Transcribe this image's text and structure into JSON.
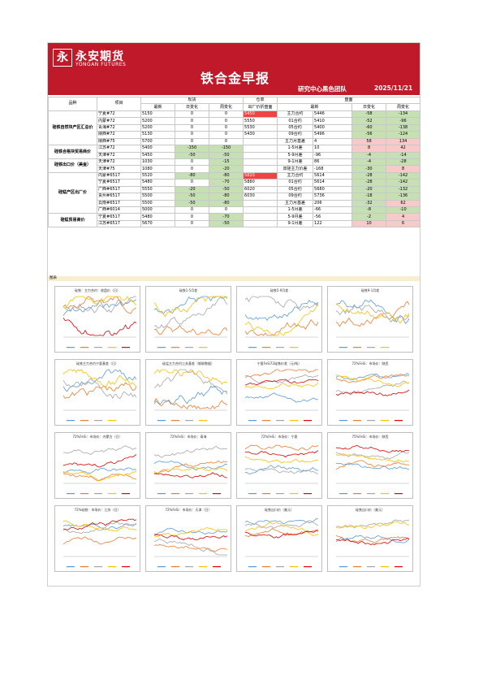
{
  "header": {
    "logo_mark": "永",
    "logo_cn": "永安期货",
    "logo_en": "YONGAN FUTURES",
    "title": "铁合金早报",
    "team": "研究中心黑色团队",
    "date": "2025/11/21"
  },
  "table": {
    "col_pinzhong": "品种",
    "col_xiangmu": "项目",
    "col_xianhuo": "现货",
    "col_cangdan": "仓单",
    "col_panmian": "盘面",
    "col_zuixin": "最新",
    "col_ribianhua": "日变化",
    "col_zhoubianhua": "周变化",
    "col_chuchang": "出厂价折盘面",
    "groups": [
      {
        "label": "硅铁自然块产区汇总价",
        "rows": [
          0,
          1,
          2,
          3,
          4
        ]
      },
      {
        "label": "硅铁合格块贸易商价",
        "rows": [
          5,
          6
        ]
      },
      {
        "label": "硅铁出口价（美金）",
        "rows": [
          7,
          8
        ]
      },
      {
        "label": "硅锰产区出厂价",
        "rows": [
          9,
          10,
          11,
          12,
          13,
          14
        ]
      },
      {
        "label": "硅锰贸易商价",
        "rows": [
          15,
          16
        ]
      }
    ],
    "rows": [
      {
        "item": "宁夏#72",
        "latest": "5150",
        "day": "0",
        "week": "0",
        "cangdan": "5450",
        "pm_label": "主力合约",
        "pm_latest": "5446",
        "pm_day": "-58",
        "pm_week": "-134"
      },
      {
        "item": "内蒙#72",
        "latest": "5200",
        "day": "0",
        "week": "0",
        "cangdan": "5550",
        "pm_label": "01合约",
        "pm_latest": "5410",
        "pm_day": "-52",
        "pm_week": "-96"
      },
      {
        "item": "青海#72",
        "latest": "5200",
        "day": "0",
        "week": "0",
        "cangdan": "5530",
        "pm_label": "05合约",
        "pm_latest": "5400",
        "pm_day": "-60",
        "pm_week": "-138"
      },
      {
        "item": "陕西#72",
        "latest": "5130",
        "day": "0",
        "week": "0",
        "cangdan": "5430",
        "pm_label": "09合约",
        "pm_latest": "5496",
        "pm_day": "-56",
        "pm_week": "-124"
      },
      {
        "item": "陕西#75",
        "latest": "5700",
        "day": "0",
        "week": "0",
        "cangdan": "",
        "pm_label": "主力月基差",
        "pm_latest": "4",
        "pm_day": "58",
        "pm_week": "134"
      },
      {
        "item": "江苏#72",
        "latest": "5400",
        "day": "-150",
        "week": "-150",
        "cangdan": "",
        "pm_label": "1-5月差",
        "pm_latest": "10",
        "pm_day": "8",
        "pm_week": "42"
      },
      {
        "item": "天津#72",
        "latest": "5450",
        "day": "-50",
        "week": "-50",
        "cangdan": "",
        "pm_label": "5-9月差",
        "pm_latest": "-96",
        "pm_day": "-4",
        "pm_week": "-14"
      },
      {
        "item": "天津#72",
        "latest": "1030",
        "day": "0",
        "week": "-15",
        "cangdan": "",
        "pm_label": "9-1月差",
        "pm_latest": "86",
        "pm_day": "-4",
        "pm_week": "-28"
      },
      {
        "item": "天津#75",
        "latest": "1080",
        "day": "0",
        "week": "-20",
        "cangdan": "",
        "pm_label": "双硅主力价差",
        "pm_latest": "-168",
        "pm_day": "-30",
        "pm_week": "8"
      },
      {
        "item": "内蒙#6517",
        "latest": "5520",
        "day": "-80",
        "week": "-80",
        "cangdan": "5820",
        "pm_label": "主力合约",
        "pm_latest": "5614",
        "pm_day": "-28",
        "pm_week": "-142"
      },
      {
        "item": "宁夏#6517",
        "latest": "5480",
        "day": "0",
        "week": "-70",
        "cangdan": "5880",
        "pm_label": "01合约",
        "pm_latest": "5614",
        "pm_day": "-28",
        "pm_week": "-142"
      },
      {
        "item": "广西#6517",
        "latest": "5550",
        "day": "-20",
        "week": "-50",
        "cangdan": "6020",
        "pm_label": "05合约",
        "pm_latest": "5680",
        "pm_day": "-20",
        "pm_week": "-132"
      },
      {
        "item": "贵州#6517",
        "latest": "5500",
        "day": "-50",
        "week": "-80",
        "cangdan": "6030",
        "pm_label": "09合约",
        "pm_latest": "5736",
        "pm_day": "-18",
        "pm_week": "-136"
      },
      {
        "item": "云南#6517",
        "latest": "5500",
        "day": "-50",
        "week": "-80",
        "cangdan": "",
        "pm_label": "主力月基差",
        "pm_latest": "206",
        "pm_day": "-32",
        "pm_week": "62"
      },
      {
        "item": "广西#6014",
        "latest": "5000",
        "day": "0",
        "week": "0",
        "cangdan": "",
        "pm_label": "1-5月差",
        "pm_latest": "-66",
        "pm_day": "-8",
        "pm_week": "-10"
      },
      {
        "item": "宁夏#6517",
        "latest": "5480",
        "day": "0",
        "week": "-70",
        "cangdan": "",
        "pm_label": "5-9月差",
        "pm_latest": "-56",
        "pm_day": "-2",
        "pm_week": "4"
      },
      {
        "item": "江苏#6517",
        "latest": "5670",
        "day": "0",
        "week": "-50",
        "cangdan": "",
        "pm_label": "9-1月差",
        "pm_latest": "122",
        "pm_day": "10",
        "pm_week": "6"
      }
    ]
  },
  "note": "图表",
  "charts": [
    {
      "title": "硅铁：主力合约：收盘价（日）"
    },
    {
      "title": "硅铁1-5月差"
    },
    {
      "title": "硅铁5-9月差"
    },
    {
      "title": "硅铁9-1月差"
    },
    {
      "title": "硅铁主力合约宁夏基差（日）"
    },
    {
      "title": "硅锰主力合约江苏基差（钢联数据）"
    },
    {
      "title": "宁夏FeSi72硅铁价差（元/吨）"
    },
    {
      "title": "72%FeSi：市场价：陕西"
    },
    {
      "title": "72%FeSi：市场价：内蒙古（日）"
    },
    {
      "title": "72%FeSi：市场价：青海"
    },
    {
      "title": "72%FeSi：市场价：宁夏"
    },
    {
      "title": "75%FeSi：市场价：陕西"
    },
    {
      "title": "72%硅铁：市场价：江苏（日）"
    },
    {
      "title": "72%FeSi：市场价：天津（日）"
    },
    {
      "title": "硅铁出口价（美元）"
    },
    {
      "title": "硅铁出口价（美元）"
    }
  ],
  "colors": {
    "brand": "#c0192a",
    "green": "#c6e0b4",
    "pink": "#f8c9c9",
    "red": "#ef4444",
    "series": [
      "#5b9bd5",
      "#ed7d31",
      "#a5a5a5",
      "#ffc000",
      "#e00000"
    ]
  }
}
